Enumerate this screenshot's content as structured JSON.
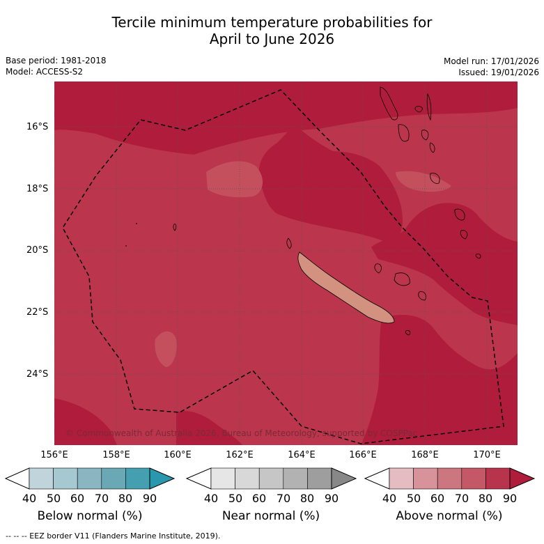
{
  "title": {
    "line1": "Tercile minimum temperature probabilities for",
    "line2": "April to June 2026"
  },
  "meta": {
    "base_period": "Base period: 1981-2018",
    "model": "Model: ACCESS-S2",
    "model_run": "Model run: 17/01/2026",
    "issued": "Issued: 19/01/2026"
  },
  "map": {
    "lat_ticks": [
      "16°S",
      "18°S",
      "20°S",
      "22°S",
      "24°S"
    ],
    "lon_ticks": [
      "156°E",
      "158°E",
      "160°E",
      "162°E",
      "164°E",
      "166°E",
      "168°E",
      "170°E"
    ],
    "copyright": "© Commonwealth of Australia 2026, Bureau of Meteorology, supported by COSPPac",
    "colors": {
      "above_70_80": "#c4505e",
      "above_80_90": "#bb364c",
      "above_90": "#b01c3b",
      "land_low": "#d2927f"
    }
  },
  "colorbars": [
    {
      "name": "Below normal (%)",
      "labels": [
        "40",
        "50",
        "60",
        "70",
        "80",
        "90"
      ],
      "colors": [
        "#ffffff",
        "#c0d4dc",
        "#a6c8d0",
        "#8ab6c2",
        "#6aa8b6",
        "#44a0b0",
        "#2a98ac"
      ]
    },
    {
      "name": "Near normal (%)",
      "labels": [
        "40",
        "50",
        "60",
        "70",
        "80",
        "90"
      ],
      "colors": [
        "#ffffff",
        "#e6e6e6",
        "#d8d8d8",
        "#c6c6c6",
        "#b2b2b2",
        "#9e9e9e",
        "#888888"
      ]
    },
    {
      "name": "Above normal (%)",
      "labels": [
        "40",
        "50",
        "60",
        "70",
        "80",
        "90"
      ],
      "colors": [
        "#ffffff",
        "#e4bcc2",
        "#d8929a",
        "#cc7680",
        "#c45866",
        "#b8344c",
        "#b01c3b"
      ]
    }
  ],
  "footnote": "--  --  -- EEZ border V11 (Flanders Marine Institute, 2019)."
}
